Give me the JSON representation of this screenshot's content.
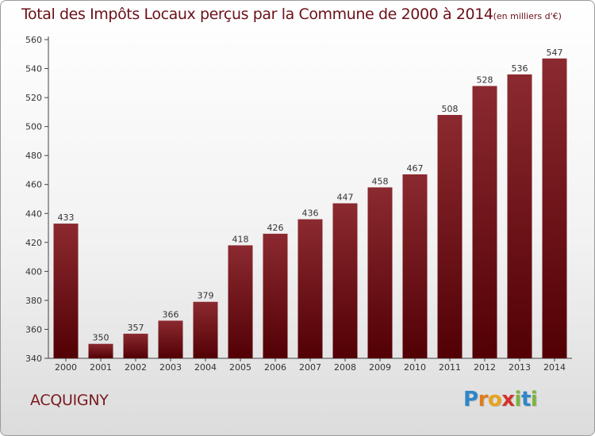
{
  "chart_data": {
    "type": "bar",
    "title": "Total des Impôts Locaux perçus par la Commune de 2000 à 2014",
    "title_unit": "(en milliers d'€)",
    "categories": [
      "2000",
      "2001",
      "2002",
      "2003",
      "2004",
      "2005",
      "2006",
      "2007",
      "2008",
      "2009",
      "2010",
      "2011",
      "2012",
      "2013",
      "2014"
    ],
    "values": [
      433,
      350,
      357,
      366,
      379,
      418,
      426,
      436,
      447,
      458,
      467,
      508,
      528,
      536,
      547
    ],
    "ylim": [
      340,
      560
    ],
    "yticks": [
      340,
      360,
      380,
      400,
      420,
      440,
      460,
      480,
      500,
      520,
      540,
      560
    ],
    "xlabel": "",
    "ylabel": "",
    "grid": false,
    "bar_color_top": "#8b2a30",
    "bar_color_bottom": "#520005"
  },
  "footer": {
    "commune": "ACQUIGNY"
  },
  "logo": {
    "text": "Proxiti",
    "letters": [
      "P",
      "r",
      "o",
      "x",
      "i",
      "t",
      "i"
    ],
    "colors": [
      "#2e86c8",
      "#e07b1a",
      "#e8a31d",
      "#d4322c",
      "#7cb342",
      "#2e86c8",
      "#7cb342"
    ]
  }
}
